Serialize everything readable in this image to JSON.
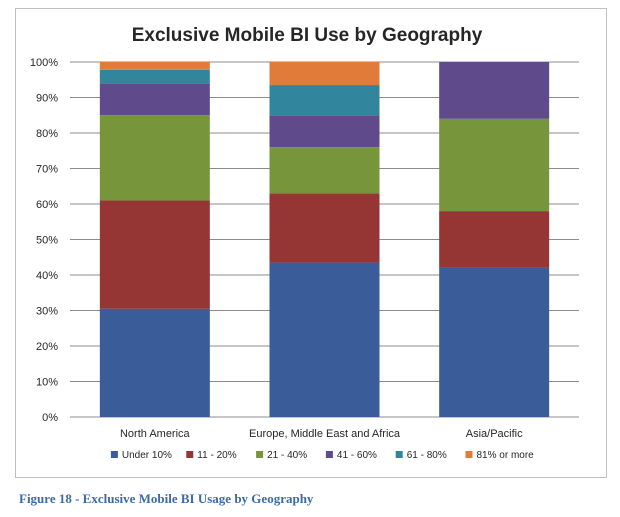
{
  "caption": "Figure 18 - Exclusive Mobile BI Usage by Geography",
  "chart_data": {
    "type": "bar",
    "stacked": true,
    "normalized": true,
    "title": "Exclusive Mobile BI Use by Geography",
    "xlabel": "",
    "ylabel": "",
    "ylim": [
      0,
      100
    ],
    "yticks": [
      "0%",
      "10%",
      "20%",
      "30%",
      "40%",
      "50%",
      "60%",
      "70%",
      "80%",
      "90%",
      "100%"
    ],
    "categories": [
      "North America",
      "Europe, Middle East and Africa",
      "Asia/Pacific"
    ],
    "grid": true,
    "legend_position": "bottom",
    "series": [
      {
        "name": "Under 10%",
        "color": "#3a5d9a",
        "values": [
          30.5,
          43.5,
          42
        ]
      },
      {
        "name": "11 - 20%",
        "color": "#963634",
        "values": [
          30.5,
          19.5,
          16
        ]
      },
      {
        "name": "21 - 40%",
        "color": "#77963c",
        "values": [
          24,
          13,
          26
        ]
      },
      {
        "name": "41 - 60%",
        "color": "#5f4b8b",
        "values": [
          9,
          9,
          16
        ]
      },
      {
        "name": "61 - 80%",
        "color": "#31859c",
        "values": [
          3.8,
          8.5,
          0
        ]
      },
      {
        "name": "81% or more",
        "color": "#e07b39",
        "values": [
          2.2,
          6.5,
          0
        ]
      }
    ]
  }
}
